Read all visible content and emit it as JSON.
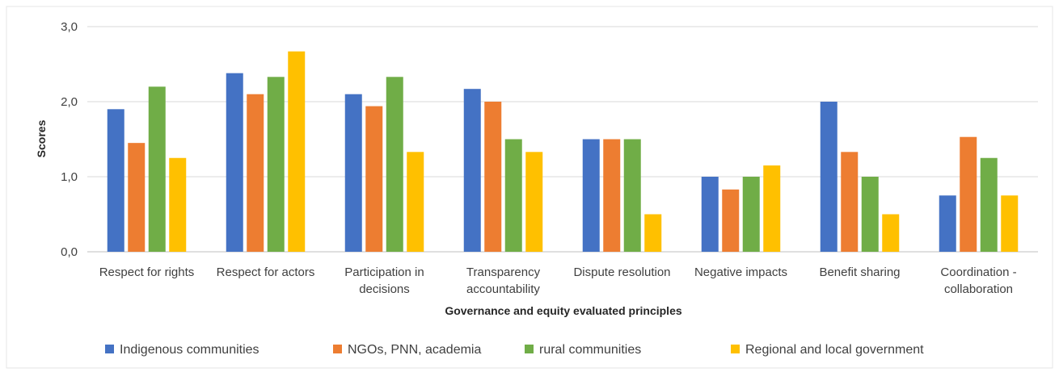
{
  "chart_data": {
    "type": "bar",
    "xlabel": "Governance and equity evaluated principles",
    "ylabel": "Scores",
    "ylim": [
      0,
      3
    ],
    "yticks": [
      "0,0",
      "1,0",
      "2,0",
      "3,0"
    ],
    "grid": true,
    "legend_position": "bottom",
    "categories": [
      [
        "Respect for rights"
      ],
      [
        "Respect for actors"
      ],
      [
        "Participation in",
        "decisions"
      ],
      [
        "Transparency",
        "accountability"
      ],
      [
        "Dispute resolution"
      ],
      [
        "Negative impacts"
      ],
      [
        "Benefit sharing"
      ],
      [
        "Coordination -",
        "collaboration"
      ]
    ],
    "series": [
      {
        "name": "Indigenous communities",
        "color": "#4472c4",
        "values": [
          1.9,
          2.38,
          2.1,
          2.17,
          1.5,
          1.0,
          2.0,
          0.75
        ]
      },
      {
        "name": "NGOs, PNN, academia",
        "color": "#ed7d31",
        "values": [
          1.45,
          2.1,
          1.94,
          2.0,
          1.5,
          0.83,
          1.33,
          1.53
        ]
      },
      {
        "name": "rural communities",
        "color": "#70ad47",
        "values": [
          2.2,
          2.33,
          2.33,
          1.5,
          1.5,
          1.0,
          1.0,
          1.25
        ]
      },
      {
        "name": "Regional and local government",
        "color": "#ffc000",
        "values": [
          1.25,
          2.67,
          1.33,
          1.33,
          0.5,
          1.15,
          0.5,
          0.75
        ]
      }
    ]
  }
}
